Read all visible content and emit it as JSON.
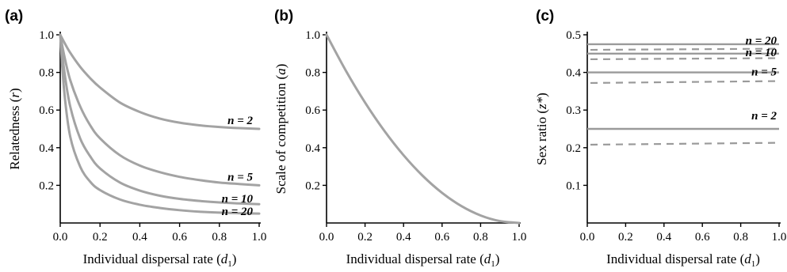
{
  "chart_data": [
    {
      "panel": "(a)",
      "type": "line",
      "xlabel_main": "Individual dispersal rate (",
      "xlabel_var": "d",
      "xlabel_sub": "1",
      "xlabel_close": ")",
      "ylabel_main": "Relatedness (",
      "ylabel_var": "r",
      "ylabel_close": ")",
      "xlim": [
        0,
        1
      ],
      "ylim": [
        0,
        1
      ],
      "xticks": [
        "0.0",
        "0.2",
        "0.4",
        "0.6",
        "0.8",
        "1.0"
      ],
      "yticks": [
        {
          "v": 0.2,
          "t": "0.2"
        },
        {
          "v": 0.4,
          "t": "0.4"
        },
        {
          "v": 0.6,
          "t": "0.6"
        },
        {
          "v": 0.8,
          "t": "0.8"
        },
        {
          "v": 1.0,
          "t": "1.0"
        }
      ],
      "x": [
        0,
        0.02,
        0.05,
        0.1,
        0.15,
        0.2,
        0.3,
        0.4,
        0.5,
        0.6,
        0.7,
        0.8,
        0.9,
        1.0
      ],
      "series": [
        {
          "label": "n = 2",
          "values": [
            1.0,
            0.96,
            0.905,
            0.83,
            0.77,
            0.72,
            0.64,
            0.59,
            0.555,
            0.533,
            0.519,
            0.51,
            0.504,
            0.5
          ]
        },
        {
          "label": "n = 5",
          "values": [
            1.0,
            0.89,
            0.76,
            0.62,
            0.52,
            0.45,
            0.36,
            0.305,
            0.27,
            0.245,
            0.228,
            0.215,
            0.207,
            0.2
          ]
        },
        {
          "label": "n = 10",
          "values": [
            1.0,
            0.81,
            0.62,
            0.45,
            0.355,
            0.29,
            0.215,
            0.172,
            0.145,
            0.128,
            0.117,
            0.109,
            0.104,
            0.1
          ]
        },
        {
          "label": "n = 20",
          "values": [
            1.0,
            0.7,
            0.46,
            0.3,
            0.22,
            0.175,
            0.125,
            0.097,
            0.08,
            0.068,
            0.06,
            0.055,
            0.052,
            0.05
          ]
        }
      ]
    },
    {
      "panel": "(b)",
      "type": "line",
      "xlabel_main": "Individual dispersal rate (",
      "xlabel_var": "d",
      "xlabel_sub": "1",
      "xlabel_close": ")",
      "ylabel_main": "Scale of competition (",
      "ylabel_var": "a",
      "ylabel_close": ")",
      "xlim": [
        0,
        1
      ],
      "ylim": [
        0,
        1
      ],
      "xticks": [
        "0.0",
        "0.2",
        "0.4",
        "0.6",
        "0.8",
        "1.0"
      ],
      "yticks": [
        {
          "v": 0.2,
          "t": "0.2"
        },
        {
          "v": 0.4,
          "t": "0.4"
        },
        {
          "v": 0.6,
          "t": "0.6"
        },
        {
          "v": 0.8,
          "t": "0.8"
        },
        {
          "v": 1.0,
          "t": "1.0"
        }
      ],
      "x": [
        0,
        0.1,
        0.2,
        0.3,
        0.4,
        0.5,
        0.6,
        0.7,
        0.8,
        0.9,
        1.0
      ],
      "series": [
        {
          "label": "",
          "values": [
            1.0,
            0.81,
            0.64,
            0.49,
            0.36,
            0.25,
            0.16,
            0.09,
            0.04,
            0.01,
            0.0
          ]
        }
      ]
    },
    {
      "panel": "(c)",
      "type": "line",
      "xlabel_main": "Individual dispersal rate (",
      "xlabel_var": "d",
      "xlabel_sub": "1",
      "xlabel_close": ")",
      "ylabel_main": "Sex ratio (",
      "ylabel_var": "z*",
      "ylabel_close": ")",
      "xlim": [
        0,
        1
      ],
      "ylim": [
        0,
        0.5
      ],
      "xticks": [
        "0.0",
        "0.2",
        "0.4",
        "0.6",
        "0.8",
        "1.0"
      ],
      "yticks": [
        {
          "v": 0.1,
          "t": "0.1"
        },
        {
          "v": 0.2,
          "t": "0.2"
        },
        {
          "v": 0.3,
          "t": "0.3"
        },
        {
          "v": 0.4,
          "t": "0.4"
        },
        {
          "v": 0.5,
          "t": "0.5"
        }
      ],
      "series": [
        {
          "label": "n = 20",
          "solid": 0.475,
          "dashed_start": 0.46,
          "dashed_end": 0.463
        },
        {
          "label": "n = 10",
          "solid": 0.45,
          "dashed_start": 0.435,
          "dashed_end": 0.438
        },
        {
          "label": "n = 5",
          "solid": 0.4,
          "dashed_start": 0.372,
          "dashed_end": 0.377
        },
        {
          "label": "n = 2",
          "solid": 0.25,
          "dashed_start": 0.208,
          "dashed_end": 0.213
        }
      ]
    }
  ]
}
